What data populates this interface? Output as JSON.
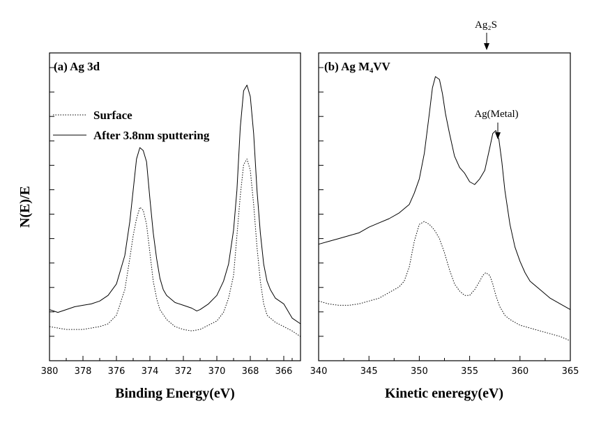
{
  "ylabel": "N(E)/E",
  "legend": {
    "surface": "Surface",
    "sputtered": "After 3.8nm sputtering"
  },
  "chart_data": [
    {
      "type": "line",
      "panel": "(a) Ag 3d",
      "xlabel": "Binding Energy(eV)",
      "xlim": [
        380,
        365
      ],
      "ylim": [
        0,
        100
      ],
      "xticks": [
        380,
        378,
        376,
        374,
        372,
        370,
        368,
        366
      ],
      "series": [
        {
          "name": "After 3.8nm sputtering",
          "style": "solid",
          "x": [
            380,
            379.5,
            379,
            378.5,
            378,
            377.5,
            377,
            376.5,
            376,
            375.5,
            375.2,
            375,
            374.8,
            374.6,
            374.4,
            374.2,
            374,
            373.8,
            373.6,
            373.4,
            373.2,
            373,
            372.5,
            372,
            371.5,
            371.2,
            371,
            370.5,
            370,
            369.6,
            369.3,
            369,
            368.8,
            368.6,
            368.4,
            368.2,
            368,
            367.8,
            367.6,
            367.4,
            367.2,
            367,
            366.8,
            366.5,
            366,
            365.5,
            365
          ],
          "y": [
            18,
            17,
            18,
            19,
            19.5,
            20,
            21,
            23,
            27,
            37,
            49,
            60,
            71,
            75,
            74,
            70,
            57,
            45,
            36,
            29,
            25,
            23,
            20.5,
            19.5,
            18.5,
            17.5,
            18,
            20,
            23,
            28,
            34,
            46,
            60,
            82,
            95,
            97,
            93,
            80,
            60,
            45,
            34,
            28,
            25,
            22,
            20,
            15,
            13
          ]
        },
        {
          "name": "Surface",
          "style": "dotted",
          "x": [
            380,
            379,
            378,
            377,
            376.5,
            376,
            375.5,
            375.2,
            375,
            374.8,
            374.6,
            374.4,
            374.2,
            374,
            373.8,
            373.6,
            373.4,
            373,
            372.5,
            372,
            371.5,
            371,
            370.5,
            370,
            369.6,
            369.3,
            369,
            368.8,
            368.6,
            368.4,
            368.2,
            368,
            367.8,
            367.6,
            367.4,
            367.2,
            367,
            366.5,
            366,
            365.5,
            365
          ],
          "y": [
            12,
            11,
            11,
            12,
            13,
            16,
            25,
            36,
            44,
            50,
            54,
            53,
            48,
            38,
            28,
            22,
            18,
            14.5,
            12,
            11,
            10.5,
            11,
            12.5,
            14,
            17,
            22,
            30,
            44,
            58,
            69,
            71,
            67,
            55,
            40,
            28,
            20,
            16,
            13.5,
            12,
            10.5,
            8.5
          ]
        }
      ]
    },
    {
      "type": "line",
      "panel": "(b) Ag M₄VV",
      "xlabel": "Kinetic eneregy(eV)",
      "xlim": [
        340,
        365
      ],
      "ylim": [
        0,
        100
      ],
      "xticks": [
        340,
        345,
        350,
        355,
        360,
        365
      ],
      "annotations": [
        {
          "text": "Ag₂S",
          "x": 356.5
        },
        {
          "text": "Ag(Metal)",
          "x": 357.8
        }
      ],
      "series": [
        {
          "name": "After 3.8nm sputtering",
          "style": "solid",
          "x": [
            340,
            341,
            342,
            343,
            344,
            345,
            346,
            347,
            348,
            349,
            349.5,
            350,
            350.5,
            351,
            351.3,
            351.6,
            352,
            352.3,
            352.6,
            353,
            353.5,
            354,
            354.5,
            355,
            355.5,
            356,
            356.5,
            357,
            357.3,
            357.6,
            357.9,
            358.2,
            358.5,
            359,
            359.5,
            360,
            360.5,
            361,
            362,
            363,
            364,
            365
          ],
          "y": [
            41,
            42,
            43,
            44,
            45,
            47,
            48.5,
            50,
            52,
            55,
            59,
            64,
            73,
            87,
            96,
            100,
            99,
            94,
            87,
            80,
            72,
            68,
            66,
            63,
            62,
            64,
            67,
            75,
            80,
            81,
            78,
            70,
            60,
            48,
            40,
            35,
            31,
            28,
            25,
            22,
            20,
            18
          ]
        },
        {
          "name": "Surface",
          "style": "dotted",
          "x": [
            340,
            341,
            342,
            343,
            344,
            345,
            346,
            347,
            348,
            348.5,
            349,
            349.5,
            350,
            350.5,
            351,
            351.5,
            352,
            352.5,
            353,
            353.5,
            354,
            354.5,
            355,
            355.5,
            356,
            356.3,
            356.6,
            357,
            357.3,
            357.6,
            358,
            358.5,
            359,
            359.5,
            360,
            361,
            362,
            363,
            364,
            365
          ],
          "y": [
            21,
            20,
            19.5,
            19.5,
            20,
            21,
            22,
            24,
            26,
            28,
            33,
            42,
            48,
            49,
            48,
            46,
            43,
            38,
            32,
            27,
            24.5,
            23,
            23,
            25,
            28,
            30,
            31,
            30,
            27,
            23,
            19,
            16,
            14.5,
            13.5,
            12.5,
            11.5,
            10.5,
            9.5,
            8.5,
            7
          ]
        }
      ]
    }
  ]
}
